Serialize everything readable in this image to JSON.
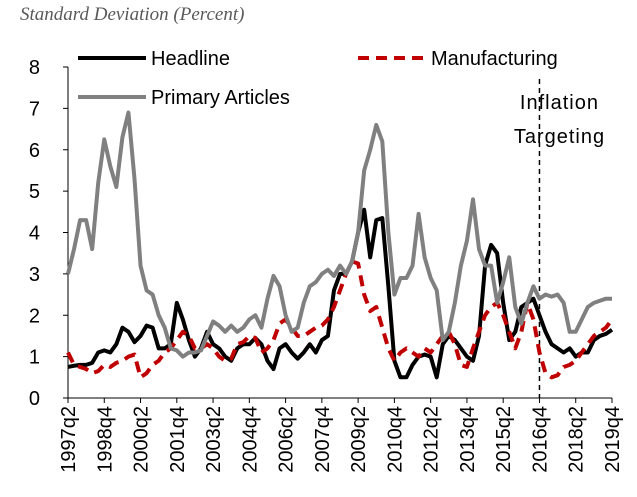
{
  "chart_data": {
    "type": "line",
    "subtitle": "Standard Deviation (Percent)",
    "categories": [
      "1997q2",
      null,
      null,
      null,
      null,
      null,
      "1998q4",
      null,
      null,
      null,
      null,
      null,
      "2000q2",
      null,
      null,
      null,
      null,
      null,
      "2001q4",
      null,
      null,
      null,
      null,
      null,
      "2003q2",
      null,
      null,
      null,
      null,
      null,
      "2004q4",
      null,
      null,
      null,
      null,
      null,
      "2006q2",
      null,
      null,
      null,
      null,
      null,
      "2007q4",
      null,
      null,
      null,
      null,
      null,
      "2009q2",
      null,
      null,
      null,
      null,
      null,
      "2010q4",
      null,
      null,
      null,
      null,
      null,
      "2012q2",
      null,
      null,
      null,
      null,
      null,
      "2013q4",
      null,
      null,
      null,
      null,
      null,
      "2015q2",
      null,
      null,
      null,
      null,
      null,
      "2016q4",
      null,
      null,
      null,
      null,
      null,
      "2018q2",
      null,
      null,
      null,
      null,
      null,
      "2019q4"
    ],
    "series": [
      {
        "name": "Headline",
        "color": "#000000",
        "dash": false,
        "values": [
          0.75,
          0.78,
          0.8,
          0.8,
          0.85,
          1.1,
          1.15,
          1.1,
          1.3,
          1.7,
          1.6,
          1.35,
          1.5,
          1.75,
          1.7,
          1.2,
          1.2,
          1.3,
          2.3,
          1.9,
          1.4,
          1.0,
          1.2,
          1.6,
          1.3,
          1.2,
          1.0,
          0.9,
          1.2,
          1.3,
          1.3,
          1.45,
          1.3,
          0.9,
          0.7,
          1.2,
          1.3,
          1.1,
          0.95,
          1.1,
          1.3,
          1.1,
          1.4,
          1.5,
          2.6,
          3.0,
          3.0,
          3.3,
          4.0,
          4.55,
          3.4,
          4.3,
          4.35,
          2.7,
          0.9,
          0.5,
          0.5,
          0.8,
          1.0,
          1.05,
          1.0,
          0.5,
          1.3,
          1.5,
          1.4,
          1.2,
          1.0,
          0.9,
          1.5,
          3.2,
          3.7,
          3.5,
          2.3,
          1.4,
          1.6,
          2.2,
          2.3,
          2.4,
          2.0,
          1.6,
          1.3,
          1.2,
          1.1,
          1.2,
          1.0,
          1.1,
          1.1,
          1.4,
          1.5,
          1.55,
          1.65
        ]
      },
      {
        "name": "Manufacturing",
        "color": "#c00000",
        "dash": true,
        "values": [
          1.1,
          0.8,
          0.75,
          0.7,
          0.6,
          0.65,
          0.8,
          0.75,
          0.85,
          0.9,
          1.0,
          1.05,
          0.5,
          0.6,
          0.8,
          0.9,
          1.1,
          1.2,
          1.4,
          1.6,
          1.5,
          1.2,
          1.2,
          1.3,
          1.2,
          1.0,
          0.9,
          0.95,
          1.3,
          1.35,
          1.5,
          1.45,
          1.1,
          1.2,
          1.4,
          1.8,
          1.9,
          1.7,
          1.5,
          1.5,
          1.6,
          1.7,
          1.75,
          1.9,
          2.2,
          2.6,
          3.0,
          3.3,
          3.25,
          2.5,
          2.1,
          2.2,
          1.7,
          1.2,
          0.9,
          1.1,
          1.2,
          1.1,
          1.0,
          1.2,
          1.1,
          1.3,
          1.5,
          1.6,
          1.3,
          0.8,
          0.75,
          1.2,
          1.6,
          2.0,
          2.2,
          2.3,
          2.0,
          1.6,
          1.2,
          1.6,
          2.3,
          1.9,
          1.1,
          0.6,
          0.5,
          0.55,
          0.75,
          0.8,
          0.9,
          1.1,
          1.3,
          1.5,
          1.6,
          1.7,
          1.9
        ]
      },
      {
        "name": "Primary Articles",
        "color": "#808080",
        "dash": false,
        "values": [
          3.0,
          3.6,
          4.3,
          4.3,
          3.6,
          5.2,
          6.25,
          5.6,
          5.1,
          6.3,
          6.9,
          5.3,
          3.2,
          2.6,
          2.5,
          2.0,
          1.7,
          1.2,
          1.15,
          1.0,
          1.1,
          1.1,
          1.15,
          1.5,
          1.85,
          1.75,
          1.6,
          1.75,
          1.6,
          1.7,
          1.9,
          2.0,
          1.7,
          2.4,
          2.95,
          2.7,
          2.0,
          1.6,
          1.7,
          2.3,
          2.7,
          2.8,
          3.0,
          3.1,
          2.95,
          3.2,
          3.0,
          3.3,
          4.0,
          5.5,
          6.0,
          6.6,
          6.2,
          4.0,
          2.5,
          2.9,
          2.9,
          3.2,
          4.45,
          3.4,
          2.9,
          2.6,
          1.4,
          1.6,
          2.3,
          3.2,
          3.8,
          4.8,
          3.6,
          3.2,
          3.2,
          2.3,
          2.8,
          3.4,
          2.2,
          1.8,
          2.3,
          2.7,
          2.4,
          2.5,
          2.45,
          2.5,
          2.3,
          1.6,
          1.6,
          1.9,
          2.2,
          2.3,
          2.35,
          2.4,
          2.4
        ]
      }
    ],
    "ylim": [
      0,
      8
    ],
    "yticks": [
      0,
      1,
      2,
      3,
      4,
      5,
      6,
      7,
      8
    ],
    "grid": false,
    "annotation": {
      "lines": [
        "Inflation",
        "Targeting"
      ],
      "x": "2016q4"
    }
  }
}
